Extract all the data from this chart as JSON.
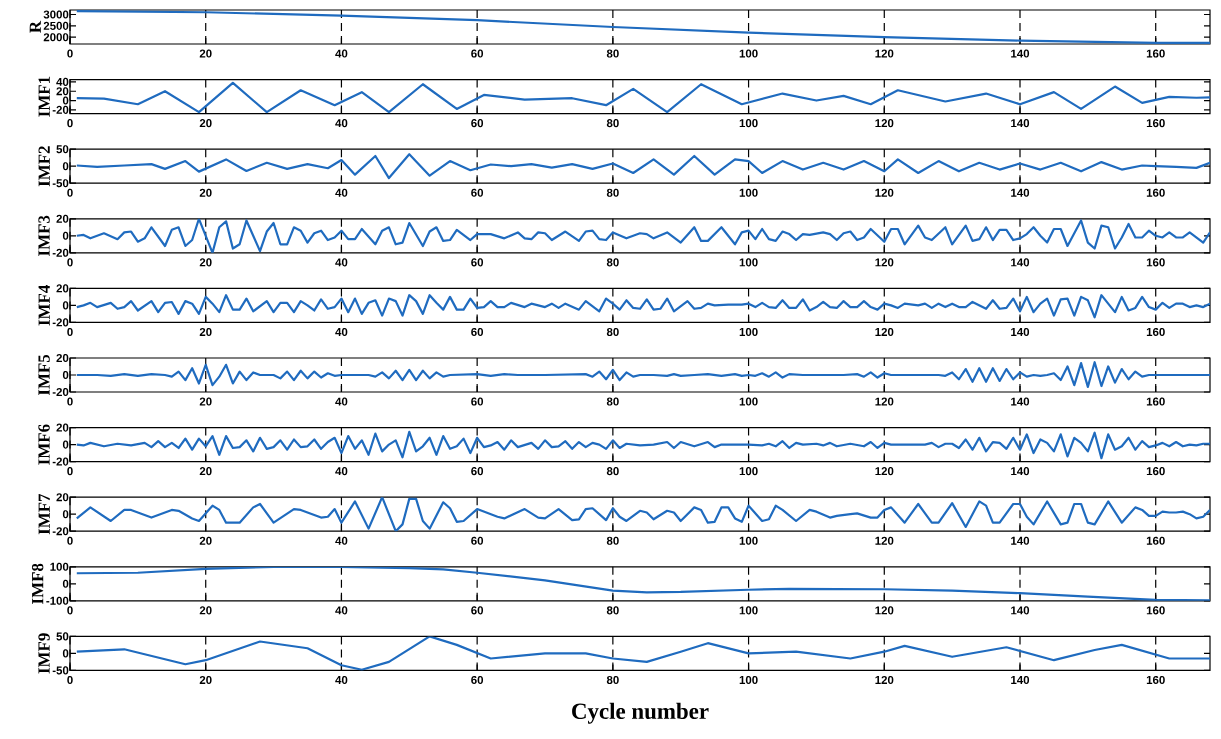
{
  "chart_data": [
    {
      "type": "line",
      "ylabel": "R",
      "xlim": [
        0,
        168
      ],
      "xticks": [
        0,
        20,
        40,
        60,
        80,
        100,
        120,
        140,
        160
      ],
      "ylim": [
        1700,
        3200
      ],
      "yticks": [
        2000,
        2500,
        3000
      ],
      "grid": "x",
      "series": [
        {
          "color": "#1f6bbf",
          "x": [
            1,
            20,
            40,
            60,
            80,
            100,
            120,
            140,
            160,
            168
          ],
          "values": [
            3150,
            3100,
            2950,
            2750,
            2450,
            2200,
            2000,
            1850,
            1750,
            1750
          ]
        }
      ]
    },
    {
      "type": "line",
      "ylabel": "IMF1",
      "xlim": [
        0,
        168
      ],
      "xticks": [
        0,
        20,
        40,
        60,
        80,
        100,
        120,
        140,
        160
      ],
      "ylim": [
        -28,
        45
      ],
      "yticks": [
        -20,
        0,
        20,
        40
      ],
      "grid": "x",
      "series": [
        {
          "color": "#1f6bbf",
          "x": [
            1,
            5,
            10,
            14,
            19,
            24,
            29,
            34,
            39,
            43,
            47,
            52,
            57,
            61,
            67,
            74,
            79,
            83,
            88,
            93,
            99,
            105,
            110,
            114,
            118,
            122,
            129,
            135,
            140,
            145,
            149,
            154,
            158,
            162,
            166,
            168
          ],
          "values": [
            5,
            4,
            -8,
            20,
            -25,
            38,
            -25,
            22,
            -10,
            18,
            -25,
            35,
            -18,
            12,
            2,
            5,
            -10,
            25,
            -25,
            35,
            -8,
            15,
            0,
            10,
            -8,
            22,
            -2,
            15,
            -8,
            18,
            -18,
            30,
            -5,
            8,
            6,
            7
          ]
        }
      ]
    },
    {
      "type": "line",
      "ylabel": "IMF2",
      "xlim": [
        0,
        168
      ],
      "xticks": [
        0,
        20,
        40,
        60,
        80,
        100,
        120,
        140,
        160
      ],
      "ylim": [
        -50,
        50
      ],
      "yticks": [
        -50,
        0,
        50
      ],
      "grid": "x",
      "series": [
        {
          "color": "#1f6bbf",
          "x": [
            1,
            4,
            8,
            12,
            14,
            17,
            19,
            23,
            26,
            29,
            32,
            35,
            38,
            40,
            42,
            45,
            47,
            50,
            53,
            56,
            59,
            62,
            65,
            68,
            71,
            74,
            77,
            80,
            83,
            86,
            89,
            92,
            95,
            98,
            100,
            102,
            105,
            108,
            111,
            114,
            117,
            120,
            122,
            125,
            128,
            131,
            134,
            137,
            140,
            143,
            146,
            149,
            152,
            155,
            158,
            160,
            163,
            166,
            168
          ],
          "values": [
            2,
            -2,
            2,
            6,
            -8,
            15,
            -16,
            20,
            -14,
            10,
            -8,
            6,
            -6,
            18,
            -25,
            30,
            -35,
            35,
            -28,
            15,
            -12,
            5,
            0,
            6,
            -4,
            6,
            -8,
            8,
            -20,
            20,
            -25,
            30,
            -25,
            20,
            15,
            -20,
            15,
            -10,
            10,
            -10,
            15,
            -15,
            20,
            -20,
            15,
            -15,
            10,
            -10,
            8,
            -10,
            10,
            -15,
            12,
            -10,
            2,
            0,
            -2,
            -5,
            10
          ]
        }
      ]
    },
    {
      "type": "line",
      "ylabel": "IMF3",
      "xlim": [
        0,
        168
      ],
      "xticks": [
        0,
        20,
        40,
        60,
        80,
        100,
        120,
        140,
        160
      ],
      "ylim": [
        -20,
        20
      ],
      "yticks": [
        -20,
        0,
        20
      ],
      "grid": "x",
      "series": [
        {
          "color": "#1f6bbf",
          "x": [
            1,
            2,
            3,
            5,
            7,
            8,
            9,
            10,
            11,
            12,
            14,
            15,
            16,
            17,
            18,
            19,
            21,
            22,
            23,
            24,
            25,
            26,
            28,
            29,
            30,
            31,
            32,
            33,
            34,
            35,
            36,
            37,
            38,
            39,
            40,
            41,
            42,
            43,
            45,
            46,
            47,
            48,
            49,
            50,
            52,
            53,
            54,
            55,
            56,
            57,
            59,
            60,
            62,
            64,
            66,
            67,
            68,
            69,
            70,
            71,
            73,
            75,
            76,
            77,
            78,
            79,
            80,
            82,
            84,
            85,
            86,
            88,
            90,
            92,
            93,
            94,
            96,
            98,
            99,
            100,
            101,
            102,
            103,
            104,
            105,
            106,
            107,
            108,
            109,
            111,
            112,
            113,
            114,
            115,
            116,
            117,
            118,
            120,
            121,
            122,
            123,
            125,
            126,
            127,
            129,
            130,
            132,
            133,
            134,
            135,
            136,
            137,
            138,
            139,
            140,
            141,
            142,
            143,
            144,
            145,
            146,
            147,
            149,
            150,
            151,
            152,
            153,
            154,
            155,
            156,
            157,
            158,
            159,
            160,
            161,
            162,
            163,
            164,
            165,
            167,
            168
          ],
          "values": [
            0,
            1,
            -3,
            3,
            -4,
            4,
            5,
            -7,
            -3,
            10,
            -12,
            7,
            10,
            -12,
            -5,
            20,
            -20,
            10,
            17,
            -15,
            -10,
            18,
            -18,
            5,
            15,
            -10,
            -10,
            10,
            6,
            -8,
            3,
            6,
            -5,
            -2,
            6,
            -4,
            -4,
            8,
            -10,
            6,
            10,
            -10,
            -8,
            15,
            -12,
            5,
            10,
            -6,
            -5,
            7,
            -5,
            2,
            2,
            -3,
            4,
            -3,
            -4,
            4,
            3,
            -5,
            5,
            -6,
            5,
            6,
            -4,
            -5,
            4,
            -3,
            3,
            2,
            -3,
            4,
            -8,
            10,
            -6,
            -6,
            10,
            -10,
            4,
            6,
            -4,
            8,
            -4,
            -6,
            5,
            2,
            -5,
            2,
            1,
            4,
            2,
            -5,
            3,
            5,
            -5,
            -2,
            8,
            -7,
            8,
            8,
            -10,
            12,
            -2,
            -5,
            10,
            -10,
            12,
            -6,
            -4,
            10,
            -5,
            7,
            7,
            -5,
            -3,
            2,
            10,
            0,
            -8,
            8,
            8,
            -12,
            18,
            -8,
            -15,
            12,
            10,
            -15,
            -2,
            14,
            -2,
            -2,
            6,
            0,
            -2,
            4,
            -2,
            -2,
            4,
            -8,
            4
          ]
        }
      ]
    },
    {
      "type": "line",
      "ylabel": "IMF4",
      "xlim": [
        0,
        168
      ],
      "xticks": [
        0,
        20,
        40,
        60,
        80,
        100,
        120,
        140,
        160
      ],
      "ylim": [
        -20,
        20
      ],
      "yticks": [
        -20,
        0,
        20
      ],
      "grid": "x",
      "series": [
        {
          "color": "#1f6bbf",
          "x": [
            1,
            2,
            3,
            4,
            6,
            7,
            8,
            9,
            10,
            12,
            13,
            14,
            15,
            16,
            17,
            18,
            19,
            20,
            21,
            22,
            23,
            24,
            25,
            26,
            27,
            29,
            30,
            31,
            32,
            33,
            34,
            35,
            36,
            37,
            38,
            39,
            40,
            41,
            42,
            43,
            44,
            45,
            46,
            47,
            48,
            49,
            50,
            51,
            52,
            53,
            54,
            55,
            56,
            57,
            58,
            59,
            60,
            61,
            62,
            63,
            64,
            65,
            67,
            68,
            70,
            71,
            72,
            73,
            75,
            76,
            78,
            79,
            80,
            81,
            82,
            83,
            84,
            85,
            86,
            87,
            88,
            89,
            91,
            92,
            93,
            94,
            95,
            97,
            99,
            100,
            101,
            102,
            103,
            104,
            105,
            106,
            107,
            108,
            109,
            110,
            111,
            112,
            113,
            114,
            115,
            116,
            117,
            118,
            119,
            120,
            121,
            122,
            123,
            125,
            126,
            127,
            128,
            129,
            130,
            131,
            132,
            133,
            134,
            135,
            136,
            137,
            138,
            139,
            140,
            141,
            142,
            143,
            144,
            145,
            146,
            147,
            148,
            149,
            150,
            151,
            152,
            154,
            155,
            156,
            157,
            158,
            159,
            160,
            161,
            162,
            163,
            164,
            165,
            166,
            167,
            168
          ],
          "values": [
            -2,
            0,
            3,
            -2,
            3,
            -4,
            -2,
            5,
            -6,
            5,
            -8,
            3,
            4,
            -10,
            5,
            2,
            -10,
            10,
            2,
            -8,
            12,
            -5,
            -5,
            8,
            -7,
            5,
            -8,
            3,
            3,
            -8,
            5,
            0,
            -6,
            7,
            -4,
            -2,
            8,
            -8,
            8,
            -10,
            3,
            6,
            -12,
            8,
            5,
            -12,
            12,
            5,
            -10,
            12,
            3,
            -5,
            10,
            -5,
            -5,
            8,
            -3,
            -2,
            5,
            -2,
            -2,
            3,
            -2,
            2,
            -2,
            2,
            -3,
            2,
            -5,
            5,
            -7,
            8,
            2,
            -5,
            6,
            -3,
            -4,
            7,
            -5,
            -4,
            8,
            -7,
            5,
            -4,
            -3,
            2,
            0,
            1,
            1,
            2,
            -2,
            3,
            -2,
            -3,
            6,
            -3,
            -3,
            7,
            -6,
            -2,
            4,
            -2,
            -3,
            5,
            -2,
            -2,
            5,
            -2,
            -5,
            2,
            0,
            -3,
            2,
            0,
            2,
            -3,
            2,
            -2,
            2,
            -2,
            -2,
            4,
            0,
            -4,
            6,
            -4,
            -3,
            8,
            -7,
            10,
            -8,
            2,
            8,
            -12,
            7,
            8,
            -12,
            10,
            6,
            -14,
            12,
            -8,
            10,
            -6,
            -3,
            10,
            -2,
            -5,
            3,
            -3,
            2,
            2,
            -2,
            0,
            -2,
            2
          ]
        }
      ]
    },
    {
      "type": "line",
      "ylabel": "IMF5",
      "xlim": [
        0,
        168
      ],
      "xticks": [
        0,
        20,
        40,
        60,
        80,
        100,
        120,
        140,
        160
      ],
      "ylim": [
        -20,
        20
      ],
      "yticks": [
        -20,
        0,
        20
      ],
      "grid": "x",
      "series": [
        {
          "color": "#1f6bbf",
          "x": [
            1,
            4,
            6,
            8,
            10,
            12,
            14,
            15,
            16,
            17,
            18,
            19,
            20,
            21,
            22,
            23,
            24,
            25,
            26,
            27,
            28,
            30,
            31,
            32,
            33,
            34,
            35,
            36,
            37,
            38,
            39,
            40,
            44,
            45,
            46,
            47,
            48,
            49,
            50,
            51,
            52,
            53,
            54,
            55,
            56,
            60,
            62,
            64,
            66,
            70,
            76,
            77,
            78,
            79,
            80,
            81,
            82,
            83,
            84,
            86,
            88,
            89,
            90,
            92,
            94,
            96,
            98,
            99,
            100,
            101,
            102,
            103,
            104,
            105,
            106,
            108,
            114,
            116,
            117,
            118,
            119,
            120,
            121,
            128,
            129,
            130,
            131,
            132,
            133,
            134,
            135,
            136,
            137,
            138,
            139,
            140,
            141,
            142,
            143,
            144,
            145,
            146,
            147,
            148,
            149,
            150,
            151,
            152,
            153,
            154,
            155,
            156,
            157,
            158,
            159,
            168
          ],
          "values": [
            0,
            0,
            -1,
            1,
            -1,
            1,
            0,
            -2,
            4,
            -6,
            8,
            -10,
            12,
            -12,
            -2,
            12,
            -10,
            4,
            -6,
            3,
            0,
            0,
            -4,
            4,
            -6,
            5,
            -4,
            4,
            -3,
            2,
            -1,
            0,
            0,
            -2,
            3,
            -4,
            5,
            -6,
            6,
            -6,
            5,
            -4,
            3,
            -2,
            0,
            1,
            -1,
            1,
            0,
            0,
            1,
            -2,
            4,
            -5,
            6,
            -6,
            3,
            -2,
            0,
            0,
            -1,
            1,
            -1,
            0,
            1,
            -1,
            1,
            -1,
            0,
            -1,
            2,
            -2,
            3,
            -3,
            1,
            0,
            0,
            1,
            -2,
            3,
            -3,
            2,
            0,
            0,
            -1,
            3,
            -5,
            7,
            -8,
            8,
            -8,
            8,
            -7,
            7,
            -5,
            3,
            -2,
            0,
            -1,
            0,
            2,
            -6,
            10,
            -12,
            14,
            -14,
            15,
            -13,
            10,
            -9,
            7,
            -5,
            4,
            -2,
            0,
            0
          ]
        }
      ]
    },
    {
      "type": "line",
      "ylabel": "IMF6",
      "xlim": [
        0,
        168
      ],
      "xticks": [
        0,
        20,
        40,
        60,
        80,
        100,
        120,
        140,
        160
      ],
      "ylim": [
        -20,
        20
      ],
      "yticks": [
        -20,
        0,
        20
      ],
      "grid": "x",
      "series": [
        {
          "color": "#1f6bbf",
          "x": [
            1,
            2,
            3,
            5,
            7,
            9,
            11,
            12,
            13,
            14,
            15,
            16,
            17,
            18,
            19,
            20,
            21,
            22,
            23,
            24,
            25,
            26,
            27,
            28,
            29,
            30,
            31,
            32,
            33,
            34,
            35,
            36,
            37,
            38,
            39,
            40,
            41,
            42,
            43,
            44,
            45,
            46,
            47,
            48,
            49,
            50,
            51,
            52,
            53,
            54,
            55,
            56,
            57,
            58,
            59,
            60,
            61,
            62,
            63,
            64,
            65,
            66,
            68,
            69,
            70,
            71,
            72,
            73,
            74,
            75,
            76,
            77,
            78,
            79,
            80,
            81,
            82,
            84,
            86,
            88,
            89,
            90,
            92,
            94,
            95,
            96,
            100,
            102,
            103,
            104,
            105,
            106,
            107,
            108,
            110,
            111,
            112,
            113,
            115,
            117,
            118,
            119,
            120,
            121,
            126,
            127,
            128,
            129,
            130,
            131,
            132,
            133,
            134,
            135,
            136,
            137,
            138,
            139,
            140,
            141,
            142,
            143,
            144,
            145,
            146,
            147,
            148,
            149,
            150,
            151,
            152,
            153,
            154,
            155,
            156,
            157,
            158,
            159,
            160,
            161,
            162,
            163,
            164,
            165,
            166,
            167,
            168
          ],
          "values": [
            0,
            -1,
            2,
            -2,
            1,
            -1,
            2,
            -3,
            4,
            -3,
            2,
            -4,
            7,
            -6,
            7,
            -2,
            10,
            -12,
            10,
            -4,
            -3,
            5,
            -8,
            8,
            -5,
            -3,
            5,
            -6,
            6,
            -3,
            -2,
            6,
            -5,
            3,
            8,
            -10,
            10,
            -5,
            5,
            -12,
            13,
            -8,
            0,
            5,
            -15,
            15,
            -8,
            -2,
            8,
            -12,
            10,
            -5,
            -2,
            7,
            -10,
            8,
            -3,
            -1,
            3,
            -6,
            5,
            -3,
            2,
            -5,
            5,
            -3,
            -2,
            4,
            -5,
            3,
            -3,
            2,
            0,
            -5,
            5,
            -4,
            1,
            -1,
            0,
            3,
            -4,
            3,
            -2,
            3,
            -3,
            0,
            0,
            -1,
            1,
            -2,
            4,
            -4,
            2,
            0,
            1,
            -1,
            2,
            -2,
            1,
            -2,
            3,
            -4,
            2,
            0,
            0,
            2,
            -3,
            1,
            1,
            -4,
            6,
            -6,
            8,
            -8,
            3,
            2,
            -5,
            8,
            -6,
            12,
            -10,
            6,
            2,
            -8,
            12,
            -14,
            8,
            2,
            -8,
            14,
            -16,
            12,
            -6,
            -2,
            8,
            -6,
            4,
            -3,
            -1,
            2,
            -2,
            3,
            -2,
            0,
            -1,
            1,
            1
          ]
        }
      ]
    },
    {
      "type": "line",
      "ylabel": "IMF7",
      "xlim": [
        0,
        168
      ],
      "xticks": [
        0,
        20,
        40,
        60,
        80,
        100,
        120,
        140,
        160
      ],
      "ylim": [
        -20,
        20
      ],
      "yticks": [
        -20,
        0,
        20
      ],
      "grid": "x",
      "series": [
        {
          "color": "#1f6bbf",
          "x": [
            1,
            3,
            6,
            8,
            9,
            12,
            15,
            16,
            18,
            19,
            21,
            22,
            23,
            25,
            27,
            28,
            30,
            33,
            34,
            37,
            38,
            39,
            40,
            42,
            44,
            46,
            48,
            49,
            50,
            51,
            52,
            53,
            55,
            56,
            57,
            58,
            60,
            63,
            64,
            67,
            69,
            70,
            72,
            74,
            75,
            76,
            77,
            79,
            80,
            81,
            82,
            84,
            85,
            86,
            88,
            89,
            90,
            92,
            93,
            94,
            95,
            96,
            97,
            98,
            99,
            100,
            102,
            103,
            104,
            105,
            107,
            109,
            110,
            112,
            113,
            115,
            116,
            118,
            119,
            120,
            121,
            123,
            125,
            127,
            128,
            130,
            132,
            134,
            135,
            136,
            137,
            139,
            140,
            141,
            142,
            144,
            146,
            147,
            148,
            149,
            150,
            151,
            153,
            155,
            157,
            158,
            159,
            160,
            161,
            162,
            163,
            164,
            165,
            166,
            167,
            168
          ],
          "values": [
            -5,
            8,
            -8,
            5,
            5,
            -4,
            5,
            4,
            -5,
            -8,
            10,
            5,
            -10,
            -10,
            8,
            12,
            -10,
            6,
            5,
            -4,
            -3,
            6,
            -10,
            15,
            -17,
            20,
            -20,
            -12,
            18,
            18,
            -8,
            -17,
            14,
            7,
            -9,
            -8,
            6,
            -3,
            -5,
            6,
            -4,
            -5,
            6,
            -7,
            -6,
            6,
            7,
            -7,
            7,
            -3,
            -8,
            4,
            2,
            -6,
            4,
            2,
            -8,
            8,
            5,
            -10,
            -9,
            8,
            8,
            -5,
            -9,
            10,
            -8,
            -6,
            10,
            5,
            -8,
            5,
            3,
            -4,
            -2,
            0,
            1,
            -4,
            -4,
            5,
            8,
            -10,
            12,
            -10,
            -10,
            13,
            -15,
            15,
            10,
            -10,
            -10,
            12,
            12,
            -3,
            -12,
            15,
            -12,
            -10,
            12,
            12,
            -10,
            -12,
            15,
            -10,
            8,
            5,
            -2,
            -2,
            3,
            2,
            2,
            3,
            0,
            -5,
            -3,
            5
          ]
        }
      ]
    },
    {
      "type": "line",
      "ylabel": "IMF8",
      "xlim": [
        0,
        168
      ],
      "xticks": [
        0,
        20,
        40,
        60,
        80,
        100,
        120,
        140,
        160
      ],
      "ylim": [
        -100,
        100
      ],
      "yticks": [
        -100,
        0,
        100
      ],
      "grid": "x",
      "series": [
        {
          "color": "#1f6bbf",
          "x": [
            1,
            10,
            20,
            30,
            40,
            50,
            55,
            60,
            70,
            80,
            85,
            90,
            100,
            106,
            120,
            130,
            140,
            150,
            160,
            168
          ],
          "values": [
            62,
            65,
            88,
            100,
            100,
            92,
            85,
            65,
            20,
            -40,
            -50,
            -48,
            -35,
            -30,
            -32,
            -40,
            -55,
            -75,
            -95,
            -98
          ]
        }
      ]
    },
    {
      "type": "line",
      "ylabel": "IMF9",
      "xlabel": "Cycle number",
      "xlim": [
        0,
        168
      ],
      "xticks": [
        0,
        20,
        40,
        60,
        80,
        100,
        120,
        140,
        160
      ],
      "ylim": [
        -50,
        50
      ],
      "yticks": [
        -50,
        0,
        50
      ],
      "grid": "x",
      "series": [
        {
          "color": "#1f6bbf",
          "x": [
            1,
            8,
            17,
            20,
            28,
            35,
            40,
            43,
            47,
            53,
            57,
            62,
            70,
            76,
            80,
            85,
            90,
            94,
            100,
            107,
            115,
            120,
            123,
            130,
            138,
            145,
            151,
            155,
            162,
            168
          ],
          "values": [
            5,
            12,
            -32,
            -20,
            35,
            15,
            -35,
            -48,
            -25,
            50,
            25,
            -15,
            0,
            0,
            -15,
            -25,
            5,
            30,
            0,
            5,
            -15,
            5,
            22,
            -10,
            18,
            -20,
            10,
            25,
            -15,
            -15
          ]
        }
      ]
    }
  ]
}
